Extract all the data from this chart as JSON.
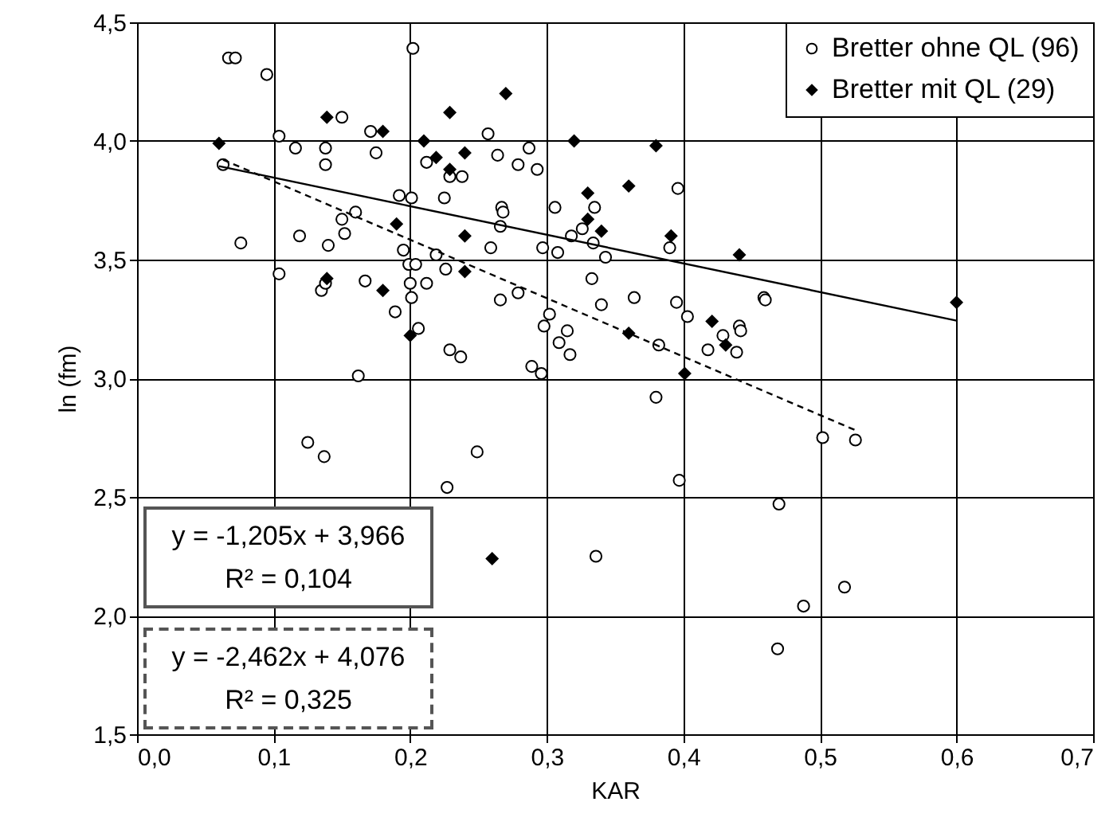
{
  "chart_data": {
    "type": "scatter",
    "xlabel": "KAR",
    "ylabel": "ln (fm)",
    "xlim": [
      0,
      0.7
    ],
    "ylim": [
      1.5,
      4.5
    ],
    "xticks": [
      {
        "value": 0,
        "label": "0,0"
      },
      {
        "value": 0.1,
        "label": "0,1"
      },
      {
        "value": 0.2,
        "label": "0,2"
      },
      {
        "value": 0.3,
        "label": "0,3"
      },
      {
        "value": 0.4,
        "label": "0,4"
      },
      {
        "value": 0.5,
        "label": "0,5"
      },
      {
        "value": 0.6,
        "label": "0,6"
      },
      {
        "value": 0.7,
        "label": "0,7"
      }
    ],
    "yticks": [
      {
        "value": 1.5,
        "label": "1,5"
      },
      {
        "value": 2,
        "label": "2,0"
      },
      {
        "value": 2.5,
        "label": "2,5"
      },
      {
        "value": 3,
        "label": "3,0"
      },
      {
        "value": 3.5,
        "label": "3,5"
      },
      {
        "value": 4,
        "label": "4,0"
      },
      {
        "value": 4.5,
        "label": "4,5"
      }
    ],
    "grid": true,
    "legend": "top right",
    "annotations": [
      "y = -1,205x + 3,966\nR² = 0,104",
      "y = -2,462x + 4,076\nR² = 0,325"
    ],
    "series": [
      {
        "name": "Bretter ohne QL (96)",
        "color": "#000000",
        "marker": "circle",
        "x": [
          0.067,
          0.072,
          0.095,
          0.202,
          0.15,
          0.104,
          0.116,
          0.138,
          0.138,
          0.171,
          0.175,
          0.212,
          0.063,
          0.192,
          0.201,
          0.16,
          0.15,
          0.152,
          0.119,
          0.076,
          0.14,
          0.195,
          0.199,
          0.204,
          0.104,
          0.135,
          0.167,
          0.2,
          0.212,
          0.201,
          0.189,
          0.206,
          0.162,
          0.138,
          0.257,
          0.264,
          0.287,
          0.279,
          0.293,
          0.229,
          0.238,
          0.225,
          0.267,
          0.268,
          0.266,
          0.306,
          0.335,
          0.318,
          0.326,
          0.334,
          0.343,
          0.396,
          0.39,
          0.219,
          0.259,
          0.297,
          0.308,
          0.226,
          0.266,
          0.279,
          0.333,
          0.34,
          0.364,
          0.395,
          0.403,
          0.302,
          0.298,
          0.315,
          0.309,
          0.317,
          0.229,
          0.237,
          0.289,
          0.296,
          0.382,
          0.38,
          0.441,
          0.442,
          0.429,
          0.418,
          0.439,
          0.459,
          0.46,
          0.125,
          0.137,
          0.249,
          0.227,
          0.397,
          0.336,
          0.502,
          0.526,
          0.47,
          0.518,
          0.488,
          0.469
        ],
        "values": [
          4.35,
          4.35,
          4.28,
          4.39,
          4.1,
          4.02,
          3.97,
          3.97,
          3.9,
          4.04,
          3.95,
          3.91,
          3.9,
          3.77,
          3.76,
          3.7,
          3.67,
          3.61,
          3.6,
          3.57,
          3.56,
          3.54,
          3.48,
          3.48,
          3.44,
          3.37,
          3.41,
          3.4,
          3.4,
          3.34,
          3.28,
          3.21,
          3.01,
          3.4,
          4.03,
          3.94,
          3.97,
          3.9,
          3.88,
          3.85,
          3.85,
          3.76,
          3.72,
          3.7,
          3.64,
          3.72,
          3.72,
          3.6,
          3.63,
          3.57,
          3.51,
          3.8,
          3.55,
          3.52,
          3.55,
          3.55,
          3.53,
          3.46,
          3.33,
          3.36,
          3.42,
          3.31,
          3.34,
          3.32,
          3.26,
          3.27,
          3.22,
          3.2,
          3.15,
          3.1,
          3.12,
          3.09,
          3.05,
          3.02,
          3.14,
          2.92,
          3.22,
          3.2,
          3.18,
          3.12,
          3.11,
          3.34,
          3.33,
          2.73,
          2.67,
          2.69,
          2.54,
          2.57,
          2.25,
          2.75,
          2.74,
          2.47,
          2.12,
          2.04,
          1.86
        ]
      },
      {
        "name": "Bretter mit QL (29)",
        "color": "#000000",
        "marker": "diamond",
        "x": [
          0.06,
          0.139,
          0.18,
          0.21,
          0.19,
          0.139,
          0.18,
          0.2,
          0.27,
          0.229,
          0.219,
          0.24,
          0.229,
          0.32,
          0.38,
          0.36,
          0.33,
          0.33,
          0.34,
          0.391,
          0.24,
          0.24,
          0.36,
          0.401,
          0.421,
          0.431,
          0.441,
          0.6,
          0.26
        ],
        "values": [
          3.99,
          4.1,
          4.04,
          4.0,
          3.65,
          3.42,
          3.37,
          3.18,
          4.2,
          4.12,
          3.93,
          3.95,
          3.88,
          4.0,
          3.98,
          3.81,
          3.78,
          3.67,
          3.62,
          3.6,
          3.6,
          3.45,
          3.19,
          3.02,
          3.24,
          3.14,
          3.52,
          3.32,
          2.24
        ]
      },
      {
        "type": "line",
        "color": "#000000",
        "line_style": "solid",
        "x": [
          0.06,
          0.6
        ],
        "values": [
          3.894,
          3.243
        ]
      },
      {
        "type": "line",
        "color": "#000000",
        "line_style": "dashed",
        "x": [
          0.063,
          0.526
        ],
        "values": [
          3.921,
          2.781
        ]
      }
    ]
  }
}
